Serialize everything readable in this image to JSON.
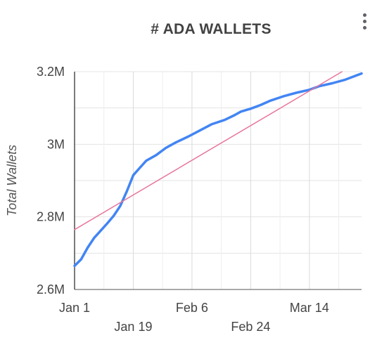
{
  "menu": {
    "icon": "more-vert-icon"
  },
  "chart_data": {
    "type": "line",
    "title": "# ADA WALLETS",
    "xlabel": "",
    "ylabel": "Total Wallets",
    "x_ticks": [
      "Jan 1",
      "Jan 19",
      "Feb 6",
      "Feb 24",
      "Mar 14"
    ],
    "y_ticks": [
      "2.6M",
      "2.8M",
      "3M",
      "3.2M"
    ],
    "ylim": [
      2600000,
      3200000
    ],
    "xlim": [
      "2021-01-01",
      "2021-03-30"
    ],
    "grid": true,
    "legend": "none",
    "series": [
      {
        "color": "#4285f4",
        "points": [
          [
            "2021-01-01",
            2665000
          ],
          [
            "2021-01-03",
            2683000
          ],
          [
            "2021-01-05",
            2715000
          ],
          [
            "2021-01-07",
            2742000
          ],
          [
            "2021-01-09",
            2762000
          ],
          [
            "2021-01-11",
            2782000
          ],
          [
            "2021-01-13",
            2803000
          ],
          [
            "2021-01-15",
            2830000
          ],
          [
            "2021-01-17",
            2870000
          ],
          [
            "2021-01-19",
            2915000
          ],
          [
            "2021-01-21",
            2935000
          ],
          [
            "2021-01-23",
            2955000
          ],
          [
            "2021-01-26",
            2970000
          ],
          [
            "2021-01-29",
            2990000
          ],
          [
            "2021-02-01",
            3005000
          ],
          [
            "2021-02-05",
            3022000
          ],
          [
            "2021-02-08",
            3036000
          ],
          [
            "2021-02-12",
            3055000
          ],
          [
            "2021-02-16",
            3067000
          ],
          [
            "2021-02-19",
            3080000
          ],
          [
            "2021-02-21",
            3090000
          ],
          [
            "2021-02-24",
            3098000
          ],
          [
            "2021-02-27",
            3108000
          ],
          [
            "2021-03-02",
            3120000
          ],
          [
            "2021-03-06",
            3132000
          ],
          [
            "2021-03-10",
            3142000
          ],
          [
            "2021-03-14",
            3150000
          ],
          [
            "2021-03-17",
            3160000
          ],
          [
            "2021-03-21",
            3168000
          ],
          [
            "2021-03-25",
            3178000
          ],
          [
            "2021-03-30",
            3195000
          ]
        ]
      },
      {
        "color": "#e8769a",
        "points": [
          [
            "2021-01-01",
            2765000
          ],
          [
            "2021-03-24",
            3200000
          ]
        ]
      }
    ]
  }
}
